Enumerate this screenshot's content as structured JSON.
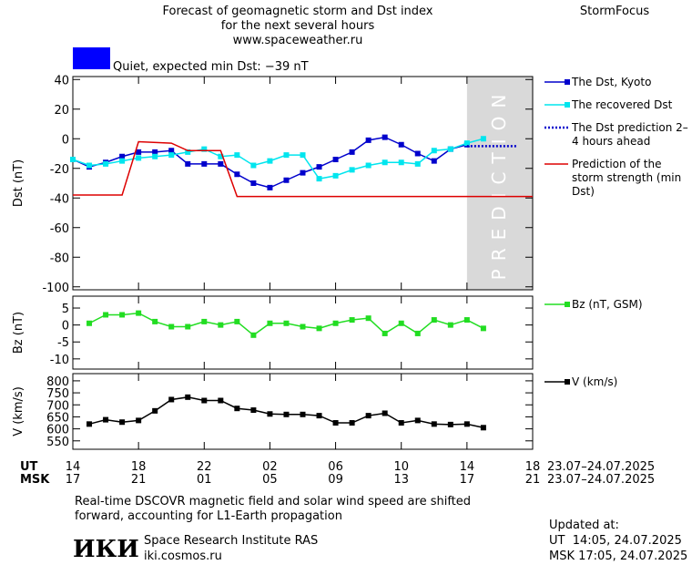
{
  "header": {
    "title_lines": [
      "Forecast of geomagnetic storm and Dst index",
      "for the next several hours",
      "www.spaceweather.ru"
    ],
    "brand": "StormFocus"
  },
  "status": {
    "text": "Quiet, expected min Dst: −39 nT",
    "color": "#0000ff"
  },
  "time_axis": {
    "xlim": [
      0,
      28
    ],
    "ut": {
      "label": "UT",
      "date": "23.07–24.07.2025",
      "ticks": [
        {
          "value": 0,
          "label": "14"
        },
        {
          "value": 4,
          "label": "18"
        },
        {
          "value": 8,
          "label": "22"
        },
        {
          "value": 12,
          "label": "02"
        },
        {
          "value": 16,
          "label": "06"
        },
        {
          "value": 20,
          "label": "10"
        },
        {
          "value": 24,
          "label": "14"
        },
        {
          "value": 28,
          "label": "18"
        }
      ]
    },
    "msk": {
      "label": "MSK",
      "date": "23.07–24.07.2025",
      "ticks": [
        {
          "value": 0,
          "label": "17"
        },
        {
          "value": 4,
          "label": "21"
        },
        {
          "value": 8,
          "label": "01"
        },
        {
          "value": 12,
          "label": "05"
        },
        {
          "value": 16,
          "label": "09"
        },
        {
          "value": 20,
          "label": "13"
        },
        {
          "value": 24,
          "label": "17"
        },
        {
          "value": 28,
          "label": "21"
        }
      ]
    }
  },
  "chart_data": [
    {
      "type": "line",
      "ylabel": "Dst (nT)",
      "ylim": [
        -102,
        42
      ],
      "yticks": [
        40,
        20,
        0,
        -20,
        -40,
        -60,
        -80,
        -100
      ],
      "prediction_zone": {
        "label": "PREDICTION",
        "x": [
          24,
          28
        ],
        "color": "#d9d9d9"
      },
      "series": [
        {
          "name": "The Dst, Kyoto",
          "color": "#0000cc",
          "marker": true,
          "x": [
            0,
            1,
            2,
            3,
            4,
            5,
            6,
            7,
            8,
            9,
            10,
            11,
            12,
            13,
            14,
            15,
            16,
            17,
            18,
            19,
            20,
            21,
            22,
            23,
            24
          ],
          "values": [
            -14,
            -19,
            -16,
            -12,
            -9,
            -9,
            -8,
            -17,
            -17,
            -17,
            -24,
            -30,
            -33,
            -28,
            -23,
            -19,
            -14,
            -9,
            -1,
            1,
            -4,
            -10,
            -15,
            -7,
            -4
          ]
        },
        {
          "name": "The recovered Dst",
          "color": "#00e5ee",
          "marker": true,
          "x": [
            0,
            1,
            2,
            3,
            4,
            5,
            6,
            7,
            8,
            9,
            10,
            11,
            12,
            13,
            14,
            15,
            16,
            17,
            18,
            19,
            20,
            21,
            22,
            23,
            24,
            25
          ],
          "values": [
            -14,
            -18,
            -17,
            -15,
            -13,
            -12,
            -11,
            -9,
            -7,
            -12,
            -11,
            -18,
            -15,
            -11,
            -11,
            -27,
            -25,
            -21,
            -18,
            -16,
            -16,
            -17,
            -8,
            -7,
            -3,
            0
          ]
        },
        {
          "name": "The Dst prediction 2–4 hours ahead",
          "color": "#0000cc",
          "marker": false,
          "dash": true,
          "x": [
            24,
            27
          ],
          "values": [
            -5,
            -5
          ]
        },
        {
          "name": "Prediction of the storm strength (min Dst)",
          "color": "#dd0000",
          "marker": false,
          "x": [
            0,
            3,
            4,
            6,
            7,
            9,
            10,
            28
          ],
          "values": [
            -38,
            -38,
            -2,
            -3,
            -8,
            -8,
            -39,
            -39
          ]
        }
      ]
    },
    {
      "type": "line",
      "ylabel": "Bz (nT)",
      "ylim": [
        -13,
        8.5
      ],
      "yticks": [
        5,
        0,
        -5,
        -10
      ],
      "series": [
        {
          "name": "Bz (nT, GSM)",
          "color": "#22dd22",
          "marker": true,
          "x": [
            1,
            2,
            3,
            4,
            5,
            6,
            7,
            8,
            9,
            10,
            11,
            12,
            13,
            14,
            15,
            16,
            17,
            18,
            19,
            20,
            21,
            22,
            23,
            24,
            25
          ],
          "values": [
            0.5,
            3,
            3,
            3.5,
            1,
            -0.5,
            -0.5,
            1,
            0,
            1,
            -3,
            0.5,
            0.5,
            -0.5,
            -1,
            0.5,
            1.5,
            2,
            -2.5,
            0.5,
            -2.5,
            1.5,
            0,
            1.5,
            -1
          ]
        }
      ]
    },
    {
      "type": "line",
      "ylabel": "V (km/s)",
      "ylim": [
        515,
        830
      ],
      "yticks": [
        800,
        750,
        700,
        650,
        600,
        550
      ],
      "series": [
        {
          "name": "V (km/s)",
          "color": "#000000",
          "marker": true,
          "x": [
            1,
            2,
            3,
            4,
            5,
            6,
            7,
            8,
            9,
            10,
            11,
            12,
            13,
            14,
            15,
            16,
            17,
            18,
            19,
            20,
            21,
            22,
            23,
            24,
            25
          ],
          "values": [
            620,
            638,
            628,
            635,
            675,
            722,
            732,
            718,
            718,
            685,
            678,
            662,
            660,
            660,
            655,
            625,
            625,
            655,
            665,
            625,
            635,
            620,
            618,
            620,
            605
          ]
        }
      ]
    }
  ],
  "footer": {
    "note_lines": [
      "Real-time DSCOVR magnetic field and solar wind speed are shifted",
      "forward, accounting for L1-Earth propagation"
    ],
    "logo": "ИКИ",
    "institute": "Space Research Institute RAS",
    "site": "iki.cosmos.ru",
    "updated": {
      "label": "Updated at:",
      "ut": "UT  14:05, 24.07.2025",
      "msk": "MSK 17:05, 24.07.2025"
    }
  }
}
